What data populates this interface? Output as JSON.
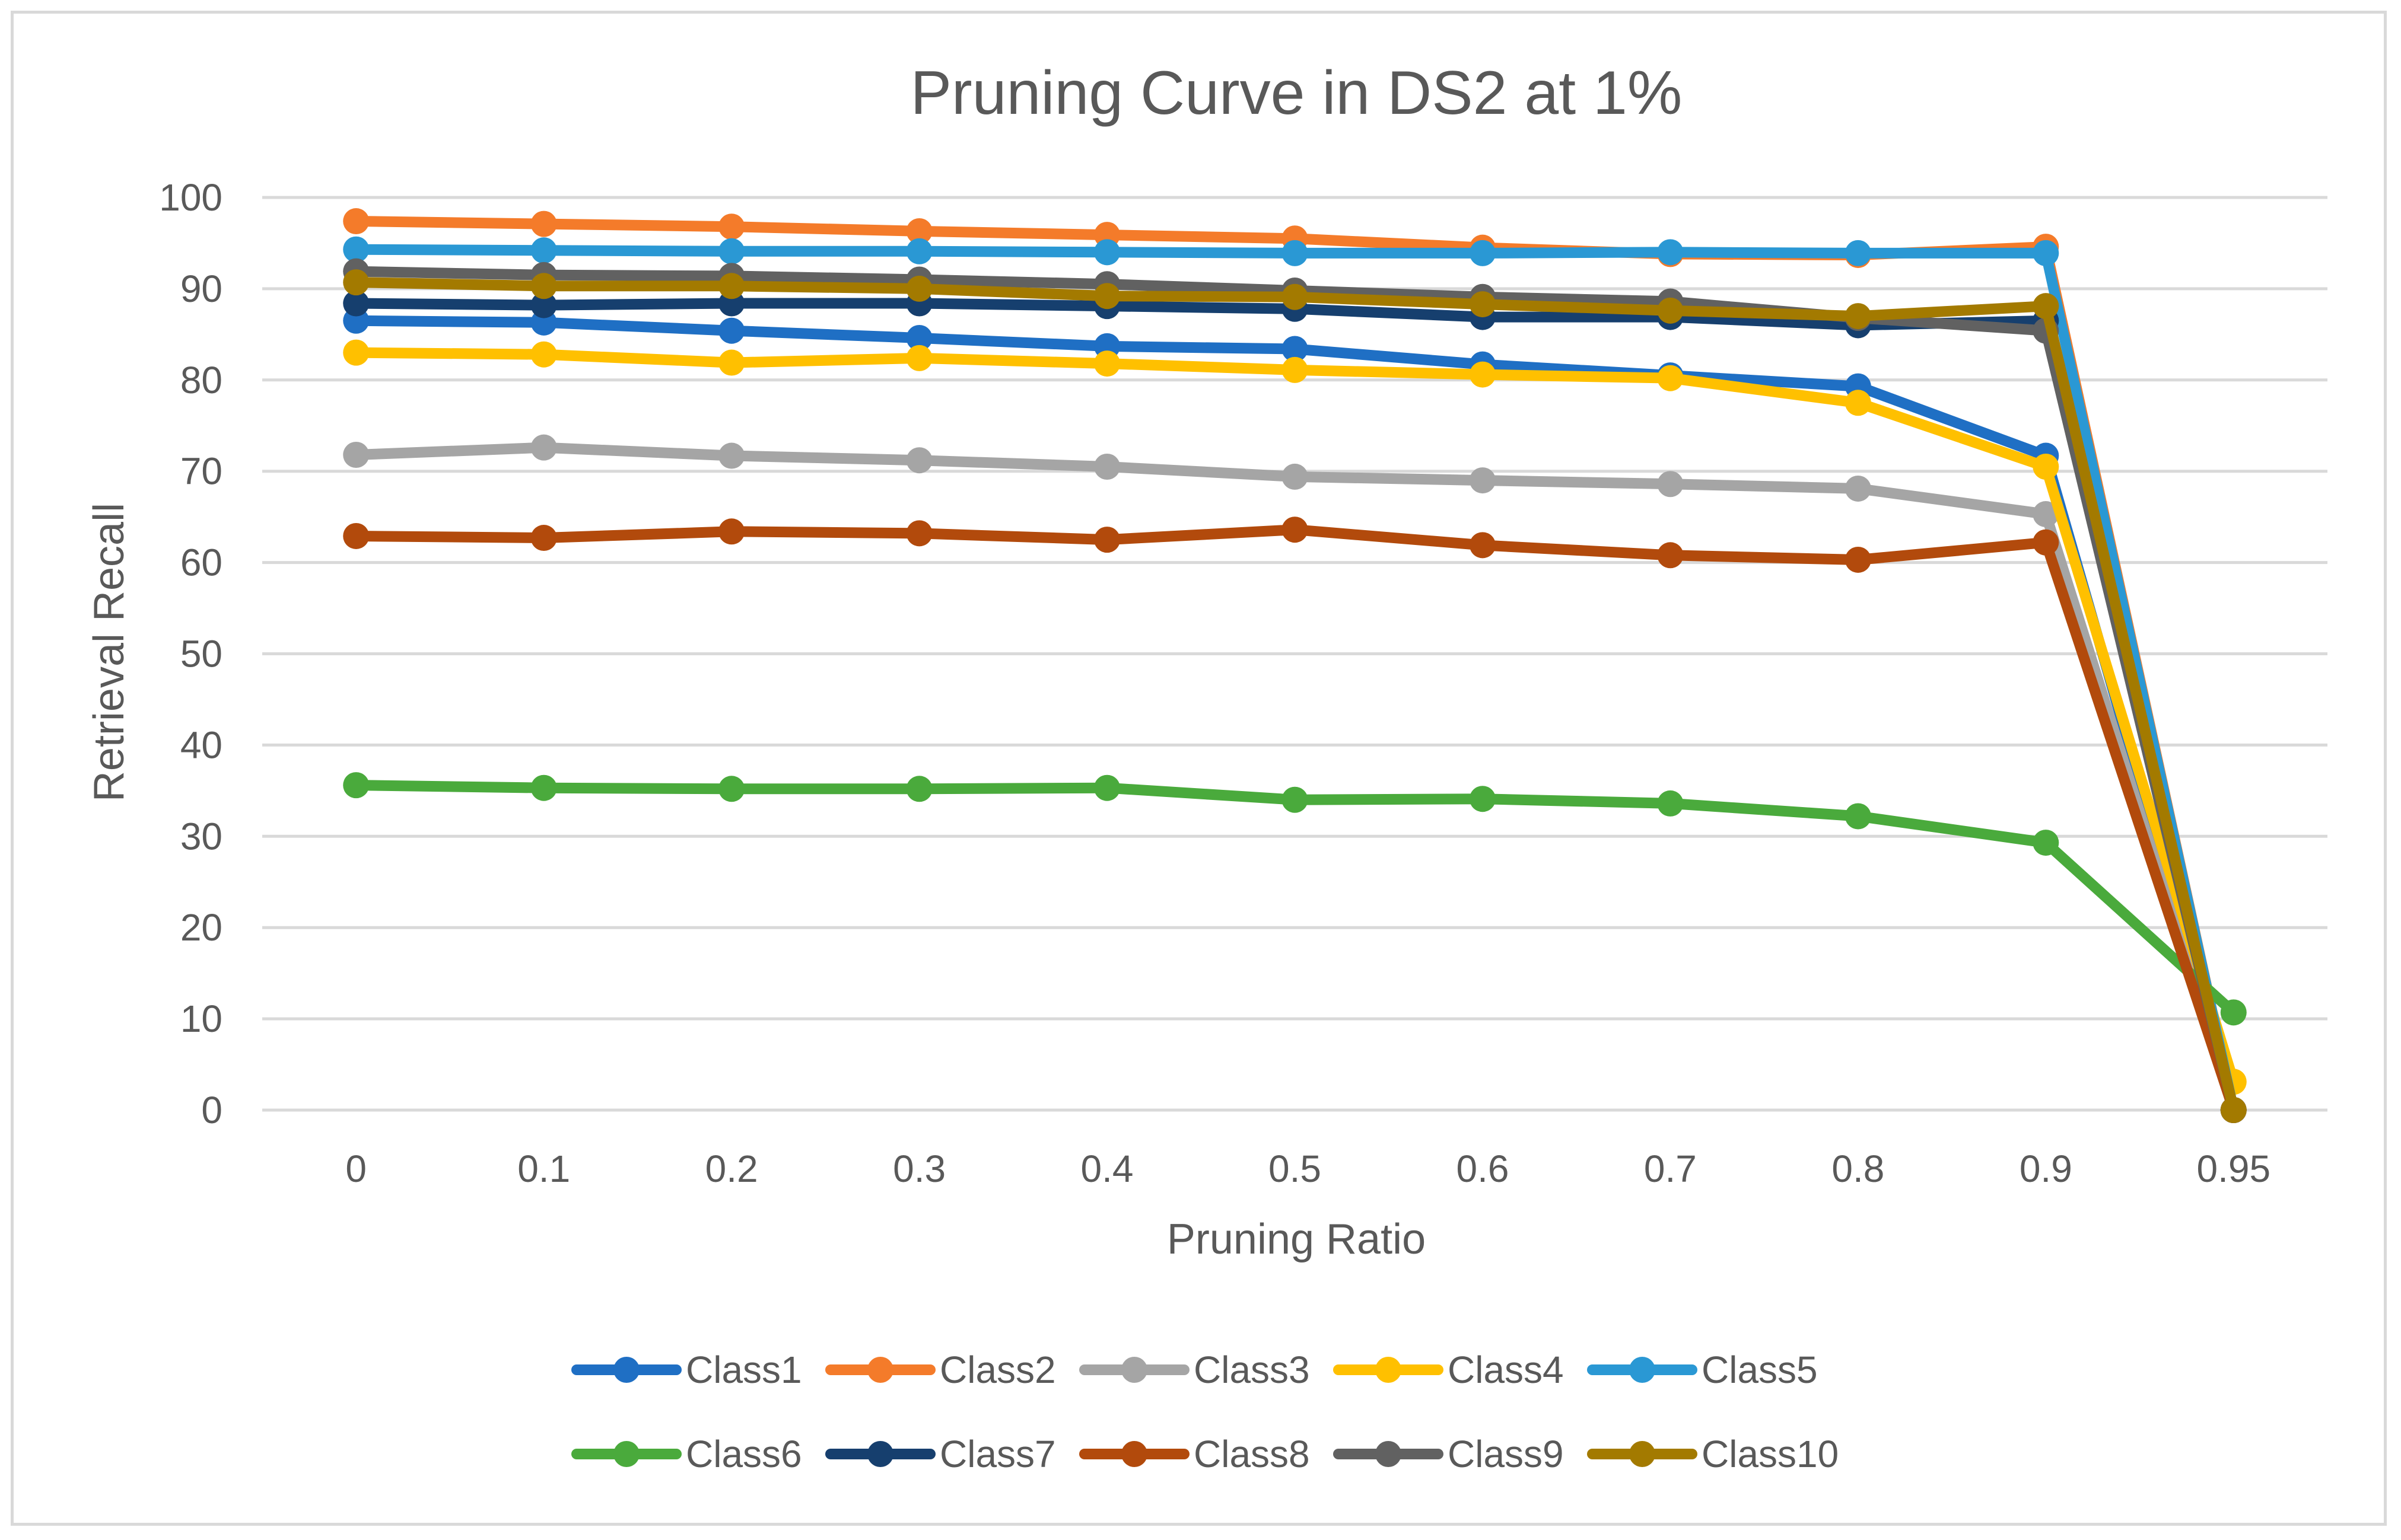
{
  "chart_data": {
    "type": "line",
    "title": "Pruning Curve in DS2 at 1%",
    "xlabel": "Pruning Ratio",
    "ylabel": "Retrieval Recall",
    "ylim": [
      0,
      100
    ],
    "yticks": [
      0,
      10,
      20,
      30,
      40,
      50,
      60,
      70,
      80,
      90,
      100
    ],
    "grid": true,
    "legend_position": "bottom",
    "categories": [
      "0",
      "0.1",
      "0.2",
      "0.3",
      "0.4",
      "0.5",
      "0.6",
      "0.7",
      "0.8",
      "0.9",
      "0.95"
    ],
    "series": [
      {
        "name": "Class1",
        "color": "#1f6fc4",
        "values": [
          86.5,
          86.3,
          85.4,
          84.6,
          83.7,
          83.4,
          81.7,
          80.5,
          79.3,
          71.7,
          0.0
        ]
      },
      {
        "name": "Class2",
        "color": "#f47b2a",
        "values": [
          97.4,
          97.1,
          96.8,
          96.3,
          95.9,
          95.5,
          94.5,
          93.8,
          93.7,
          94.6,
          0.0
        ]
      },
      {
        "name": "Class3",
        "color": "#a5a5a5",
        "values": [
          71.8,
          72.6,
          71.7,
          71.2,
          70.5,
          69.4,
          69.0,
          68.6,
          68.1,
          65.3,
          0.0
        ]
      },
      {
        "name": "Class4",
        "color": "#ffc000",
        "values": [
          83.0,
          82.8,
          81.9,
          82.4,
          81.8,
          81.1,
          80.6,
          80.2,
          77.5,
          70.5,
          3.1
        ]
      },
      {
        "name": "Class5",
        "color": "#2a98d4",
        "values": [
          94.3,
          94.2,
          94.1,
          94.1,
          94.0,
          93.9,
          93.9,
          94.0,
          93.9,
          93.9,
          0.0
        ]
      },
      {
        "name": "Class6",
        "color": "#4aaa3c",
        "values": [
          35.6,
          35.3,
          35.2,
          35.2,
          35.3,
          34.0,
          34.1,
          33.6,
          32.2,
          29.3,
          10.7
        ]
      },
      {
        "name": "Class7",
        "color": "#163f6e",
        "values": [
          88.4,
          88.2,
          88.4,
          88.4,
          88.1,
          87.8,
          86.9,
          86.9,
          86.0,
          86.5,
          0.0
        ]
      },
      {
        "name": "Class8",
        "color": "#b24a0c",
        "values": [
          62.9,
          62.7,
          63.4,
          63.2,
          62.5,
          63.6,
          61.9,
          60.8,
          60.3,
          62.2,
          0.0
        ]
      },
      {
        "name": "Class9",
        "color": "#616161",
        "values": [
          91.9,
          91.5,
          91.4,
          91.0,
          90.5,
          89.8,
          89.1,
          88.6,
          86.8,
          85.4,
          0.0
        ]
      },
      {
        "name": "Class10",
        "color": "#a37a00",
        "values": [
          90.7,
          90.3,
          90.3,
          90.0,
          89.2,
          89.1,
          88.3,
          87.6,
          87.0,
          88.1,
          0.0
        ]
      }
    ]
  }
}
